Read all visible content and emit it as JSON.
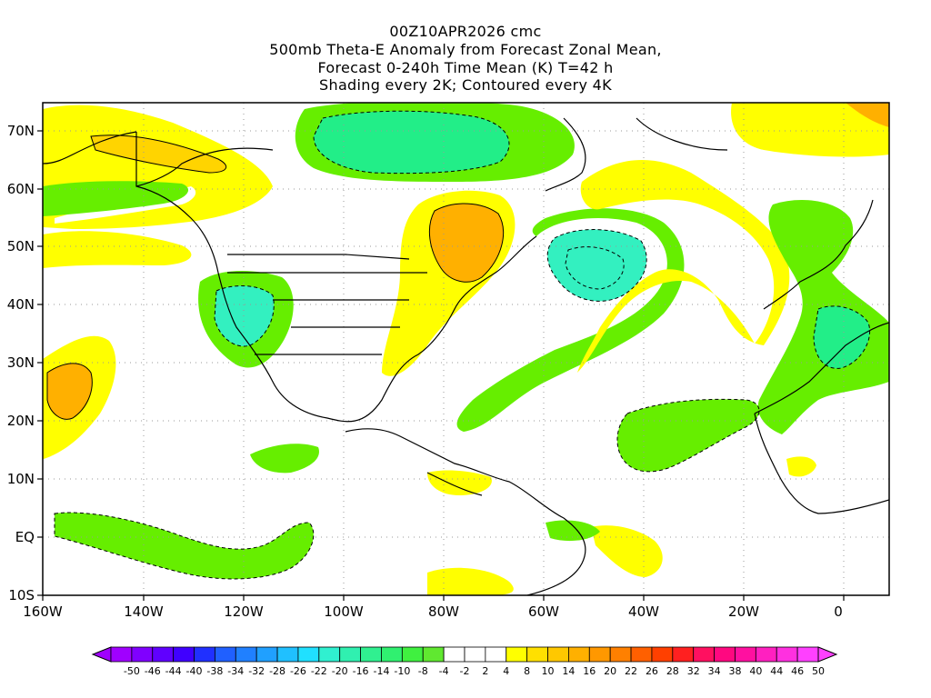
{
  "title": {
    "line1": "00Z10APR2026 cmc",
    "line2": "500mb Theta-E Anomaly from Forecast Zonal Mean,",
    "line3": "Forecast 0-240h Time Mean (K) T=42 h",
    "line4": "Shading every 2K; Contoured every 4K"
  },
  "axes": {
    "lat_labels": [
      "70N",
      "60N",
      "50N",
      "40N",
      "30N",
      "20N",
      "10N",
      "EQ",
      "10S"
    ],
    "lon_labels": [
      "160W",
      "140W",
      "120W",
      "100W",
      "80W",
      "60W",
      "40W",
      "20W",
      "0"
    ]
  },
  "colorbar": {
    "labels": [
      "-50",
      "-46",
      "-44",
      "-40",
      "-38",
      "-34",
      "-32",
      "-28",
      "-26",
      "-22",
      "-20",
      "-16",
      "-14",
      "-10",
      "-8",
      "-4",
      "-2",
      "2",
      "4",
      "8",
      "10",
      "14",
      "16",
      "20",
      "22",
      "26",
      "28",
      "32",
      "34",
      "38",
      "40",
      "44",
      "46",
      "50"
    ],
    "colors": [
      "#a000ff",
      "#8000ff",
      "#6000ff",
      "#4000ff",
      "#2030ff",
      "#2060ff",
      "#2080ff",
      "#20a0ff",
      "#20c0ff",
      "#20e0ff",
      "#30f0d0",
      "#30f0b0",
      "#30f090",
      "#30f070",
      "#40f040",
      "#60e830",
      "#ffffff",
      "#ffffff",
      "#ffffff",
      "#ffff00",
      "#ffe000",
      "#ffc800",
      "#ffb000",
      "#ff9800",
      "#ff8000",
      "#ff6000",
      "#ff4000",
      "#ff2020",
      "#ff1060",
      "#ff0880",
      "#ff10a0",
      "#ff20c0",
      "#ff30e0",
      "#ff40ff"
    ]
  },
  "shading_colors": {
    "yellow": "#ffff00",
    "light_orange": "#ffd400",
    "orange": "#ffb000",
    "green": "#66ee00",
    "teal_green": "#22ee88",
    "cyan": "#33f0c0"
  }
}
